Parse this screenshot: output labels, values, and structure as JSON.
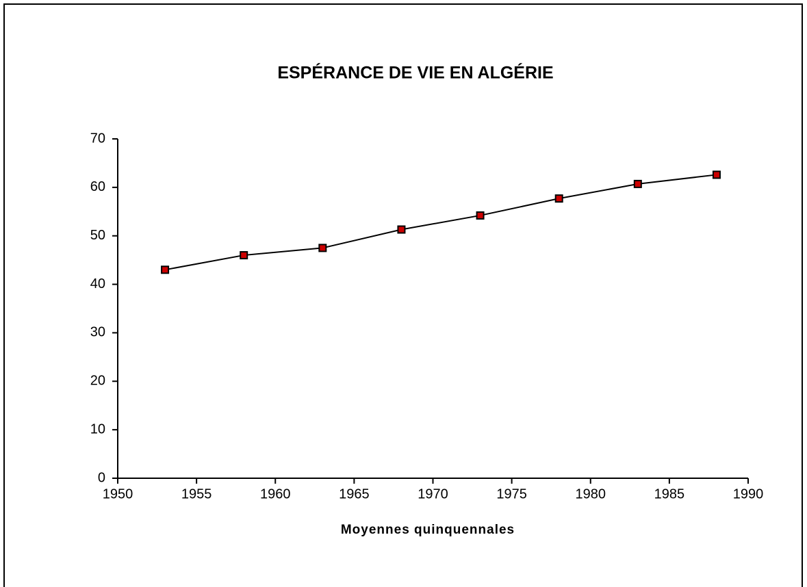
{
  "chart_data": {
    "type": "line",
    "title": "ESPÉRANCE DE VIE EN ALGÉRIE",
    "x_label": "Moyennes quinquennales",
    "x": [
      1953,
      1958,
      1963,
      1968,
      1973,
      1978,
      1983,
      1988
    ],
    "series": [
      {
        "name": "Espérance de vie",
        "color": "#000000",
        "marker_color": "#cc0000",
        "values": [
          43,
          46,
          47.5,
          51.3,
          54.2,
          57.7,
          60.7,
          62.6
        ]
      }
    ],
    "xlim": [
      1950,
      1990
    ],
    "xticks": [
      1950,
      1955,
      1960,
      1965,
      1970,
      1975,
      1980,
      1985,
      1990
    ],
    "ylim": [
      0,
      70
    ],
    "yticks": [
      0,
      10,
      20,
      30,
      40,
      50,
      60,
      70
    ],
    "grid": false,
    "legend": false
  }
}
